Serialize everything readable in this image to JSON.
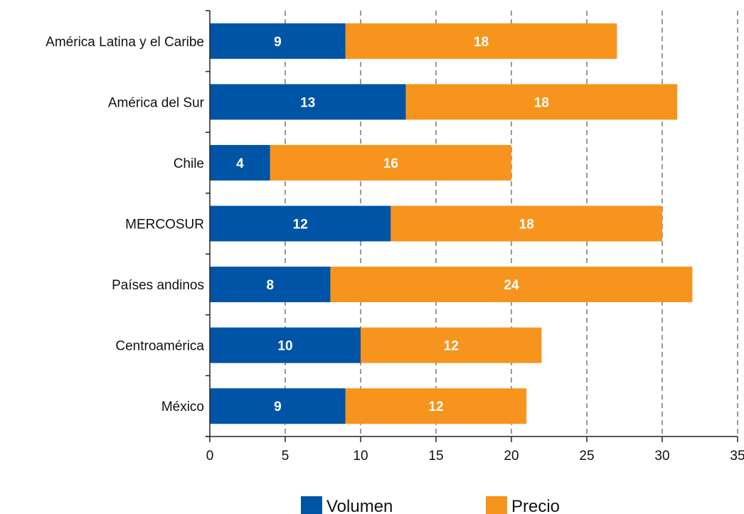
{
  "chart_data": {
    "type": "bar",
    "orientation": "horizontal",
    "stacked": true,
    "title": "",
    "xlabel": "",
    "ylabel": "",
    "categories": [
      "América Latina y el Caribe",
      "América del Sur",
      "Chile",
      "MERCOSUR",
      "Países andinos",
      "Centroamérica",
      "México"
    ],
    "series": [
      {
        "name": "Volumen",
        "color": "#0054A6",
        "values": [
          9,
          13,
          4,
          12,
          8,
          10,
          9
        ]
      },
      {
        "name": "Precio",
        "color": "#F7941D",
        "values": [
          18,
          18,
          16,
          18,
          24,
          12,
          12
        ]
      }
    ],
    "xlim": [
      0,
      35
    ],
    "xticks": [
      0,
      5,
      10,
      15,
      20,
      25,
      30,
      35
    ],
    "xgrid": "dashed vertical",
    "legend_position": "bottom"
  }
}
